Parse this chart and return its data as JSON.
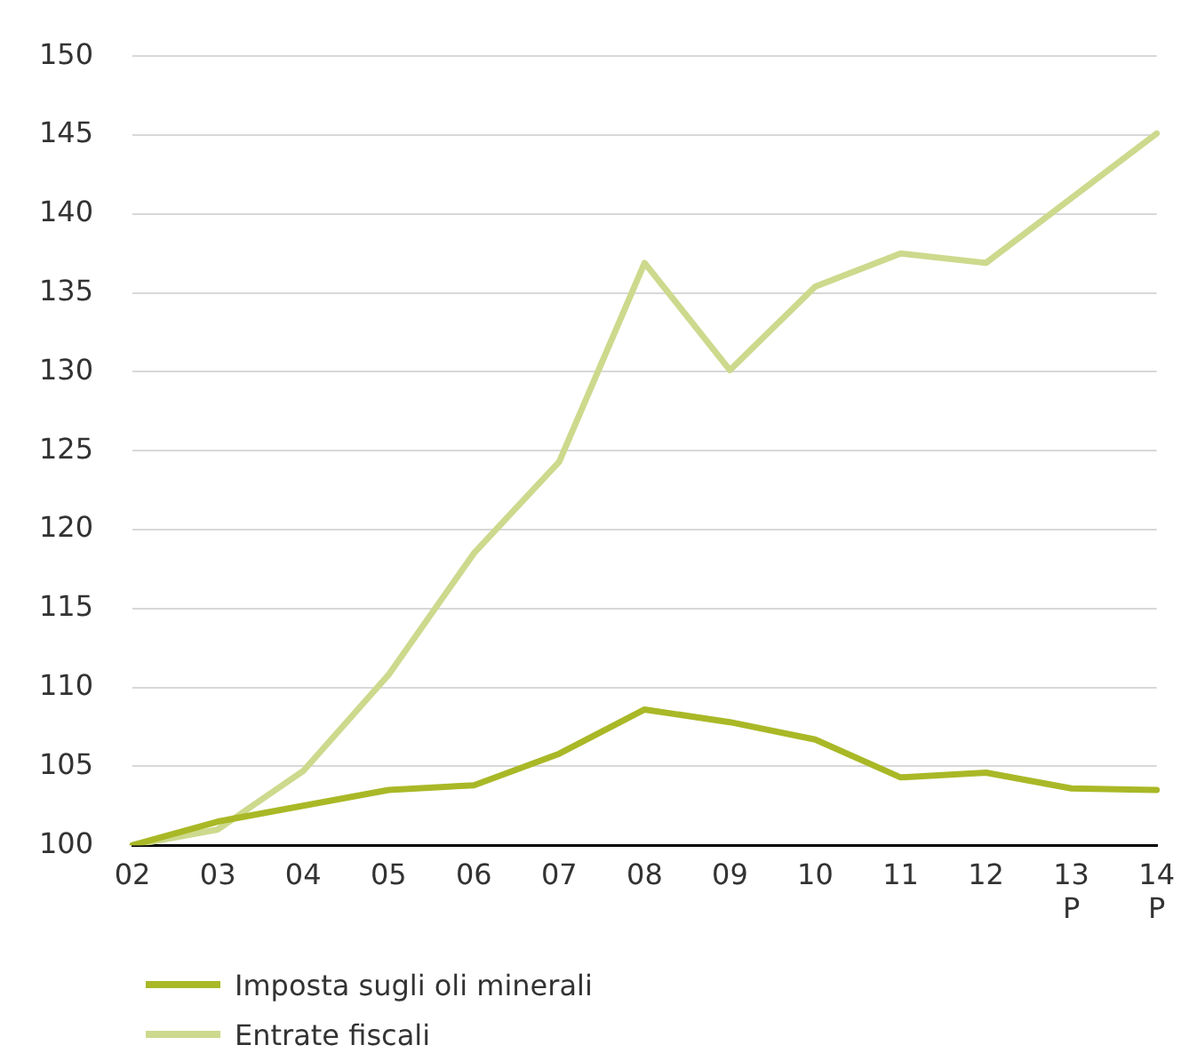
{
  "chart_data": {
    "type": "line",
    "categories": [
      "02",
      "03",
      "04",
      "05",
      "06",
      "07",
      "08",
      "09",
      "10",
      "11",
      "12",
      "13\nP",
      "14\nP"
    ],
    "series": [
      {
        "name": "Imposta sugli oli minerali",
        "color": "#a9b826",
        "values": [
          100,
          101.5,
          102.5,
          103.5,
          103.8,
          105.8,
          108.6,
          107.8,
          106.7,
          104.3,
          104.6,
          103.6,
          103.5
        ]
      },
      {
        "name": "Entrate fiscali",
        "color": "#cdd98c",
        "values": [
          100,
          101,
          104.7,
          110.8,
          118.5,
          124.3,
          136.9,
          130.1,
          135.4,
          137.5,
          136.9,
          141,
          145.1
        ]
      }
    ],
    "ylim": [
      100,
      150
    ],
    "yticks": [
      100,
      105,
      110,
      115,
      120,
      125,
      130,
      135,
      140,
      145,
      150
    ],
    "grid": "y",
    "legend": "bottom left",
    "marker": "none",
    "line_style": "solid"
  }
}
